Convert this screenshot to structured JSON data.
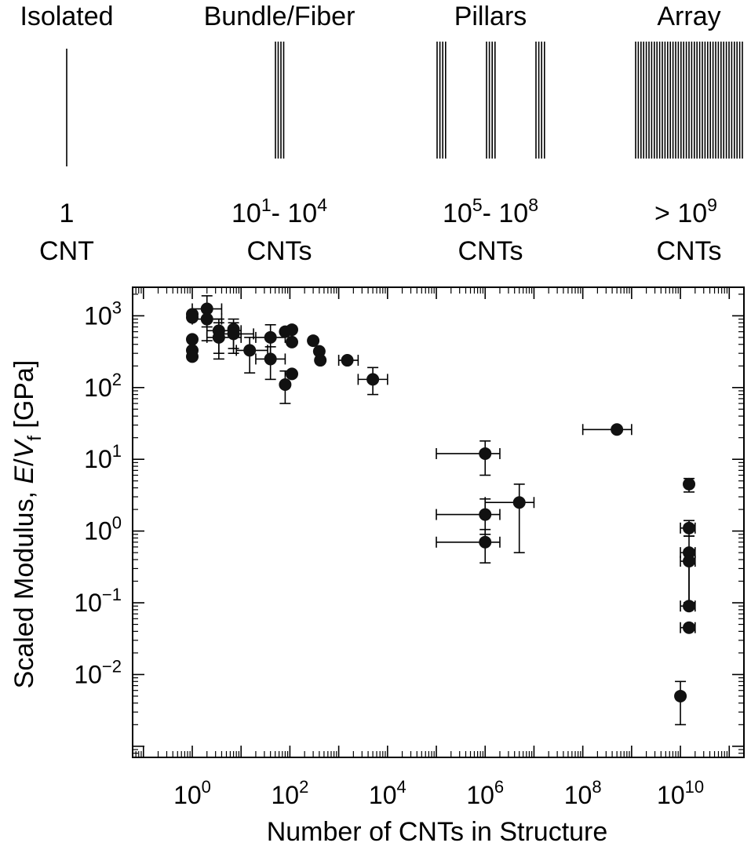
{
  "header": {
    "categories": [
      {
        "title": "Isolated",
        "count_base": "1",
        "count_exp": "",
        "count_mid": "",
        "count_base2": "",
        "count_exp2": "",
        "unit": "CNT"
      },
      {
        "title": "Bundle/Fiber",
        "count_base": "10",
        "count_exp": "1",
        "count_mid": "- ",
        "count_base2": "10",
        "count_exp2": "4",
        "unit": "CNTs"
      },
      {
        "title": "Pillars",
        "count_base": "10",
        "count_exp": "5",
        "count_mid": "- ",
        "count_base2": "10",
        "count_exp2": "8",
        "unit": "CNTs"
      },
      {
        "title": "Array",
        "count_base": "> 10",
        "count_exp": "9",
        "count_mid": "",
        "count_base2": "",
        "count_exp2": "",
        "unit": "CNTs"
      }
    ]
  },
  "chart_data": {
    "type": "scatter",
    "title": "",
    "xlabel": "Number of CNTs in Structure",
    "ylabel_prefix": "Scaled Modulus, ",
    "ylabel_E": "E",
    "ylabel_slash": "/",
    "ylabel_V": "V",
    "ylabel_sub": "f",
    "ylabel_unit": " [GPa]",
    "x_scale": "log",
    "y_scale": "log",
    "xlim": [
      0.06,
      200000000000.0
    ],
    "ylim": [
      0.0007,
      2500
    ],
    "x_ticks": [
      {
        "base": "10",
        "exp": "0",
        "value": 1
      },
      {
        "base": "10",
        "exp": "2",
        "value": 100
      },
      {
        "base": "10",
        "exp": "4",
        "value": 10000
      },
      {
        "base": "10",
        "exp": "6",
        "value": 1000000
      },
      {
        "base": "10",
        "exp": "8",
        "value": 100000000
      },
      {
        "base": "10",
        "exp": "10",
        "value": 10000000000
      }
    ],
    "y_ticks": [
      {
        "base": "10",
        "exp": "3",
        "value": 1000
      },
      {
        "base": "10",
        "exp": "2",
        "value": 100
      },
      {
        "base": "10",
        "exp": "1",
        "value": 10
      },
      {
        "base": "10",
        "exp": "0",
        "value": 1
      },
      {
        "base": "10",
        "exp": "−1",
        "value": 0.1
      },
      {
        "base": "10",
        "exp": "−2",
        "value": 0.01
      }
    ],
    "grid": false,
    "marker_color": "#111111",
    "points": [
      {
        "x": 1,
        "y": 1050
      },
      {
        "x": 1,
        "y": 950
      },
      {
        "x": 1,
        "y": 470
      },
      {
        "x": 1,
        "y": 330
      },
      {
        "x": 1,
        "y": 270
      },
      {
        "x": 2,
        "y": 1250,
        "xerr": [
          1,
          4
        ],
        "yerr": [
          700,
          1900
        ]
      },
      {
        "x": 2,
        "y": 900,
        "xerr": [
          1,
          4
        ],
        "yerr": [
          450,
          1300
        ]
      },
      {
        "x": 3.5,
        "y": 620,
        "xerr": [
          2,
          10
        ],
        "yerr": [
          300,
          900
        ]
      },
      {
        "x": 3.5,
        "y": 500,
        "xerr": [
          2,
          10
        ],
        "yerr": [
          250,
          800
        ]
      },
      {
        "x": 7,
        "y": 650,
        "yerr": [
          350,
          900
        ]
      },
      {
        "x": 7,
        "y": 560,
        "xerr": [
          4,
          18
        ],
        "yerr": [
          300,
          800
        ]
      },
      {
        "x": 15,
        "y": 330,
        "xerr": [
          8,
          35
        ],
        "yerr": [
          160,
          500
        ]
      },
      {
        "x": 40,
        "y": 500,
        "xerr": [
          20,
          80
        ],
        "yerr": [
          250,
          750
        ]
      },
      {
        "x": 40,
        "y": 250,
        "xerr": [
          20,
          80
        ],
        "yerr": [
          130,
          370
        ]
      },
      {
        "x": 80,
        "y": 600
      },
      {
        "x": 80,
        "y": 110,
        "yerr": [
          60,
          170
        ]
      },
      {
        "x": 110,
        "y": 640
      },
      {
        "x": 110,
        "y": 430
      },
      {
        "x": 110,
        "y": 155
      },
      {
        "x": 300,
        "y": 450
      },
      {
        "x": 400,
        "y": 320
      },
      {
        "x": 420,
        "y": 240
      },
      {
        "x": 1500,
        "y": 240,
        "xerr": [
          1000,
          2500
        ]
      },
      {
        "x": 5000,
        "y": 130,
        "xerr": [
          2500,
          10000
        ],
        "yerr": [
          80,
          190
        ]
      },
      {
        "x": 1000000,
        "y": 12,
        "xerr": [
          100000,
          2000000
        ],
        "yerr": [
          6,
          18
        ]
      },
      {
        "x": 1000000,
        "y": 1.7,
        "xerr": [
          100000,
          2000000
        ],
        "yerr": [
          0.9,
          2.8
        ]
      },
      {
        "x": 1000000,
        "y": 0.7,
        "xerr": [
          100000,
          2000000
        ],
        "yerr": [
          0.36,
          1.05
        ]
      },
      {
        "x": 5000000,
        "y": 2.5,
        "xerr": [
          1000000,
          10000000
        ],
        "yerr": [
          0.5,
          4.5
        ]
      },
      {
        "x": 500000000,
        "y": 26,
        "xerr": [
          100000000,
          1000000000
        ],
        "yerr": [
          24,
          28
        ]
      },
      {
        "x": 15000000000,
        "y": 4.5,
        "yerr": [
          3.5,
          5.4
        ]
      },
      {
        "x": 15000000000,
        "y": 1.1,
        "xerr": [
          10000000000,
          20000000000
        ],
        "yerr": [
          0.85,
          1.4
        ]
      },
      {
        "x": 15000000000,
        "y": 0.5,
        "xerr": [
          10000000000,
          20000000000
        ],
        "yerr": [
          0.1,
          0.85
        ]
      },
      {
        "x": 15000000000,
        "y": 0.38,
        "xerr": [
          10000000000,
          20000000000
        ],
        "yerr": [
          0.1,
          0.55
        ]
      },
      {
        "x": 15000000000,
        "y": 0.09,
        "xerr": [
          10000000000,
          20000000000
        ]
      },
      {
        "x": 15000000000,
        "y": 0.045,
        "xerr": [
          10000000000,
          20000000000
        ]
      },
      {
        "x": 10000000000,
        "y": 0.005,
        "yerr": [
          0.002,
          0.008
        ]
      }
    ]
  }
}
